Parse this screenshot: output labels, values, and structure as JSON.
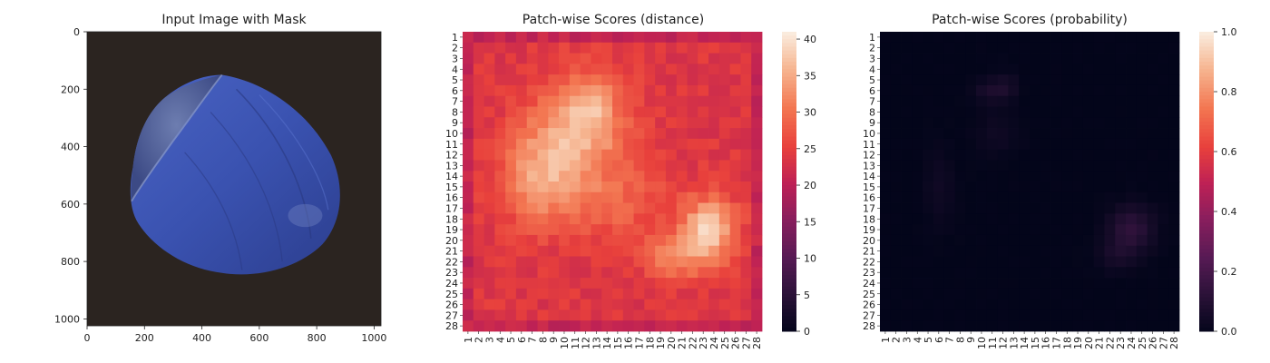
{
  "chart_data": [
    {
      "type": "image",
      "title": "Input Image with Mask",
      "xlim": [
        0,
        1024
      ],
      "ylim": [
        0,
        1024
      ],
      "xticks": [
        0,
        200,
        400,
        600,
        800,
        1000
      ],
      "yticks": [
        0,
        200,
        400,
        600,
        800,
        1000
      ],
      "colors": {
        "background": "#2a2320",
        "nut": "#3d56b4",
        "nut_dark": "#2d3f8c",
        "cap": "#4e5f95"
      }
    },
    {
      "type": "heatmap",
      "title": "Patch-wise Scores (distance)",
      "n": 28,
      "row_labels": [
        "1",
        "2",
        "3",
        "4",
        "5",
        "6",
        "7",
        "8",
        "9",
        "10",
        "11",
        "12",
        "13",
        "14",
        "15",
        "16",
        "17",
        "18",
        "19",
        "20",
        "21",
        "22",
        "23",
        "24",
        "25",
        "26",
        "27",
        "28"
      ],
      "col_labels": [
        "1",
        "2",
        "3",
        "4",
        "5",
        "6",
        "7",
        "8",
        "9",
        "10",
        "11",
        "12",
        "13",
        "14",
        "15",
        "16",
        "17",
        "18",
        "19",
        "20",
        "21",
        "22",
        "23",
        "24",
        "25",
        "26",
        "27",
        "28"
      ],
      "colorbar": {
        "min": 0,
        "max": 41,
        "ticks": [
          0,
          5,
          10,
          15,
          20,
          25,
          30,
          35,
          40
        ]
      },
      "colormap": "rocket",
      "baseline": 24,
      "edge_value": 21,
      "blobs": [
        {
          "row": 9.5,
          "col": 11.5,
          "amp": 12,
          "sx": 3.0,
          "sy": 3.2
        },
        {
          "row": 7,
          "col": 13,
          "amp": 6,
          "sx": 1.2,
          "sy": 1.5
        },
        {
          "row": 14,
          "col": 7.5,
          "amp": 9,
          "sx": 2.5,
          "sy": 3.0
        },
        {
          "row": 19,
          "col": 23.5,
          "amp": 15,
          "sx": 1.7,
          "sy": 2.0
        },
        {
          "row": 21.5,
          "col": 20.5,
          "amp": 8,
          "sx": 2.0,
          "sy": 1.4
        },
        {
          "row": 16.5,
          "col": 14,
          "amp": 5,
          "sx": 4.0,
          "sy": 2.5
        }
      ]
    },
    {
      "type": "heatmap",
      "title": "Patch-wise Scores (probability)",
      "n": 28,
      "row_labels": [
        "1",
        "2",
        "3",
        "4",
        "5",
        "6",
        "7",
        "8",
        "9",
        "10",
        "11",
        "12",
        "13",
        "14",
        "15",
        "16",
        "17",
        "18",
        "19",
        "20",
        "21",
        "22",
        "23",
        "24",
        "25",
        "26",
        "27",
        "28"
      ],
      "col_labels": [
        "1",
        "2",
        "3",
        "4",
        "5",
        "6",
        "7",
        "8",
        "9",
        "10",
        "11",
        "12",
        "13",
        "14",
        "15",
        "16",
        "17",
        "18",
        "19",
        "20",
        "21",
        "22",
        "23",
        "24",
        "25",
        "26",
        "27",
        "28"
      ],
      "colorbar": {
        "min": 0.0,
        "max": 1.0,
        "ticks": [
          "0.0",
          "0.2",
          "0.4",
          "0.6",
          "0.8",
          "1.0"
        ]
      },
      "colormap": "rocket",
      "baseline": 0.0,
      "edge_value": 0.0,
      "blobs": [
        {
          "row": 6,
          "col": 11,
          "amp": 0.08,
          "sx": 1.2,
          "sy": 0.8
        },
        {
          "row": 5.5,
          "col": 12.5,
          "amp": 0.05,
          "sx": 0.6,
          "sy": 1.0
        },
        {
          "row": 10,
          "col": 11.5,
          "amp": 0.04,
          "sx": 1.5,
          "sy": 1.5
        },
        {
          "row": 15,
          "col": 6,
          "amp": 0.04,
          "sx": 1.0,
          "sy": 2.5
        },
        {
          "row": 19,
          "col": 24,
          "amp": 0.14,
          "sx": 1.5,
          "sy": 1.5
        },
        {
          "row": 21.5,
          "col": 22.5,
          "amp": 0.06,
          "sx": 1.2,
          "sy": 1.0
        }
      ]
    }
  ]
}
